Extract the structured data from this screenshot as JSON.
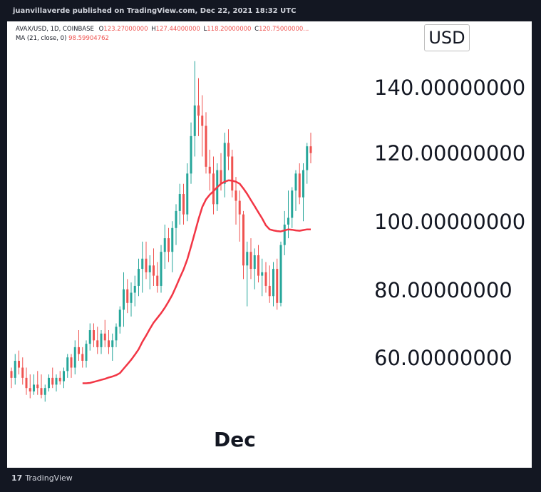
{
  "header": {
    "published": "juanvillaverde published on TradingView.com, Dec 22, 2021 18:32 UTC"
  },
  "legend": {
    "symbol": "AVAX/USD, 1D, COINBASE",
    "open_label": "O",
    "open": "123.27000000",
    "high_label": "H",
    "high": "127.44000000",
    "low_label": "L",
    "low": "118.20000000",
    "close_label": "C",
    "close": "120.75000000...",
    "ma_label": "MA (21, close, 0)",
    "ma_value": "98.59904762"
  },
  "currency": "USD",
  "footer": {
    "logo_mark": "17",
    "logo_text": "TradingView"
  },
  "colors": {
    "up": "#26a69a",
    "down": "#ef5350",
    "ma": "#f23645"
  },
  "chart_data": {
    "type": "candlestick",
    "title": "",
    "xlabel": "Dec",
    "ylabel": "USD",
    "ylim": [
      40,
      155
    ],
    "yticks": [
      140,
      120,
      100,
      80,
      60
    ],
    "ytick_labels": [
      "140.00000000",
      "120.00000000",
      "100.00000000",
      "80.00000000",
      "60.00000000"
    ],
    "x_tick_labels": [
      "Dec"
    ],
    "candles": [
      [
        57,
        58,
        52,
        55
      ],
      [
        55,
        62,
        53,
        60
      ],
      [
        60,
        63,
        56,
        58
      ],
      [
        58,
        61,
        53,
        55
      ],
      [
        55,
        58,
        50,
        52
      ],
      [
        52,
        56,
        49,
        51
      ],
      [
        51,
        56,
        50,
        53
      ],
      [
        53,
        57,
        50,
        52
      ],
      [
        52,
        56,
        49,
        50
      ],
      [
        50,
        53,
        48,
        52
      ],
      [
        52,
        56,
        51,
        55
      ],
      [
        55,
        58,
        52,
        53
      ],
      [
        53,
        56,
        51,
        55
      ],
      [
        55,
        57,
        53,
        54
      ],
      [
        54,
        58,
        52,
        57
      ],
      [
        57,
        62,
        55,
        61
      ],
      [
        61,
        62,
        55,
        58
      ],
      [
        58,
        66,
        56,
        64
      ],
      [
        64,
        69,
        60,
        62
      ],
      [
        62,
        64,
        58,
        60
      ],
      [
        60,
        66,
        58,
        65
      ],
      [
        65,
        71,
        63,
        69
      ],
      [
        69,
        71,
        64,
        66
      ],
      [
        66,
        70,
        62,
        64
      ],
      [
        64,
        69,
        62,
        68
      ],
      [
        68,
        72,
        64,
        66
      ],
      [
        66,
        69,
        62,
        64
      ],
      [
        64,
        68,
        60,
        66
      ],
      [
        66,
        71,
        64,
        70
      ],
      [
        70,
        76,
        68,
        75
      ],
      [
        75,
        86,
        70,
        81
      ],
      [
        81,
        84,
        74,
        77
      ],
      [
        77,
        83,
        73,
        80
      ],
      [
        80,
        85,
        76,
        82
      ],
      [
        82,
        90,
        79,
        87
      ],
      [
        87,
        95,
        80,
        90
      ],
      [
        90,
        95,
        84,
        86
      ],
      [
        86,
        91,
        81,
        88
      ],
      [
        88,
        93,
        82,
        85
      ],
      [
        85,
        89,
        80,
        82
      ],
      [
        82,
        94,
        80,
        92
      ],
      [
        92,
        100,
        87,
        96
      ],
      [
        96,
        99,
        89,
        92
      ],
      [
        92,
        101,
        86,
        99
      ],
      [
        99,
        106,
        94,
        104
      ],
      [
        104,
        112,
        100,
        109
      ],
      [
        109,
        112,
        100,
        103
      ],
      [
        103,
        118,
        101,
        115
      ],
      [
        115,
        130,
        112,
        126
      ],
      [
        126,
        148,
        120,
        135
      ],
      [
        135,
        143,
        126,
        132
      ],
      [
        132,
        138,
        120,
        129
      ],
      [
        129,
        133,
        115,
        117
      ],
      [
        117,
        122,
        110,
        115
      ],
      [
        115,
        120,
        103,
        106
      ],
      [
        106,
        118,
        104,
        116
      ],
      [
        116,
        121,
        110,
        112
      ],
      [
        112,
        127,
        108,
        124
      ],
      [
        124,
        128,
        116,
        120
      ],
      [
        120,
        122,
        108,
        110
      ],
      [
        110,
        114,
        100,
        107
      ],
      [
        107,
        110,
        95,
        103
      ],
      [
        103,
        104,
        84,
        88
      ],
      [
        88,
        95,
        76,
        92
      ],
      [
        92,
        96,
        84,
        87
      ],
      [
        87,
        93,
        81,
        91
      ],
      [
        91,
        94,
        83,
        85
      ],
      [
        85,
        90,
        79,
        86
      ],
      [
        86,
        89,
        80,
        82
      ],
      [
        82,
        88,
        77,
        79
      ],
      [
        79,
        89,
        76,
        87
      ],
      [
        87,
        90,
        75,
        77
      ],
      [
        77,
        95,
        76,
        94
      ],
      [
        94,
        104,
        91,
        100
      ],
      [
        100,
        110,
        96,
        102
      ],
      [
        102,
        111,
        99,
        110
      ],
      [
        110,
        116,
        104,
        115
      ],
      [
        115,
        118,
        106,
        108
      ],
      [
        108,
        118,
        101,
        116
      ],
      [
        116,
        124,
        112,
        123
      ],
      [
        123,
        127,
        118,
        121
      ]
    ],
    "ma": [
      null,
      null,
      null,
      null,
      null,
      null,
      null,
      null,
      null,
      null,
      null,
      null,
      null,
      null,
      null,
      null,
      null,
      null,
      null,
      53.4,
      53.4,
      53.5,
      53.8,
      54.1,
      54.4,
      54.7,
      55.1,
      55.4,
      55.8,
      56.4,
      57.7,
      59.0,
      60.3,
      61.8,
      63.4,
      65.6,
      67.4,
      69.4,
      71.2,
      72.6,
      74.0,
      75.6,
      77.4,
      79.4,
      81.8,
      84.4,
      86.8,
      89.8,
      93.6,
      97.6,
      101.6,
      105.2,
      107.4,
      108.8,
      109.8,
      111.0,
      112.0,
      112.6,
      113.0,
      112.9,
      112.6,
      112.0,
      110.6,
      109.0,
      107.2,
      105.4,
      103.6,
      101.8,
      99.8,
      98.6,
      98.3,
      98.1,
      98.0,
      98.3,
      98.6,
      98.5,
      98.3,
      98.2,
      98.4,
      98.6,
      98.6
    ]
  }
}
